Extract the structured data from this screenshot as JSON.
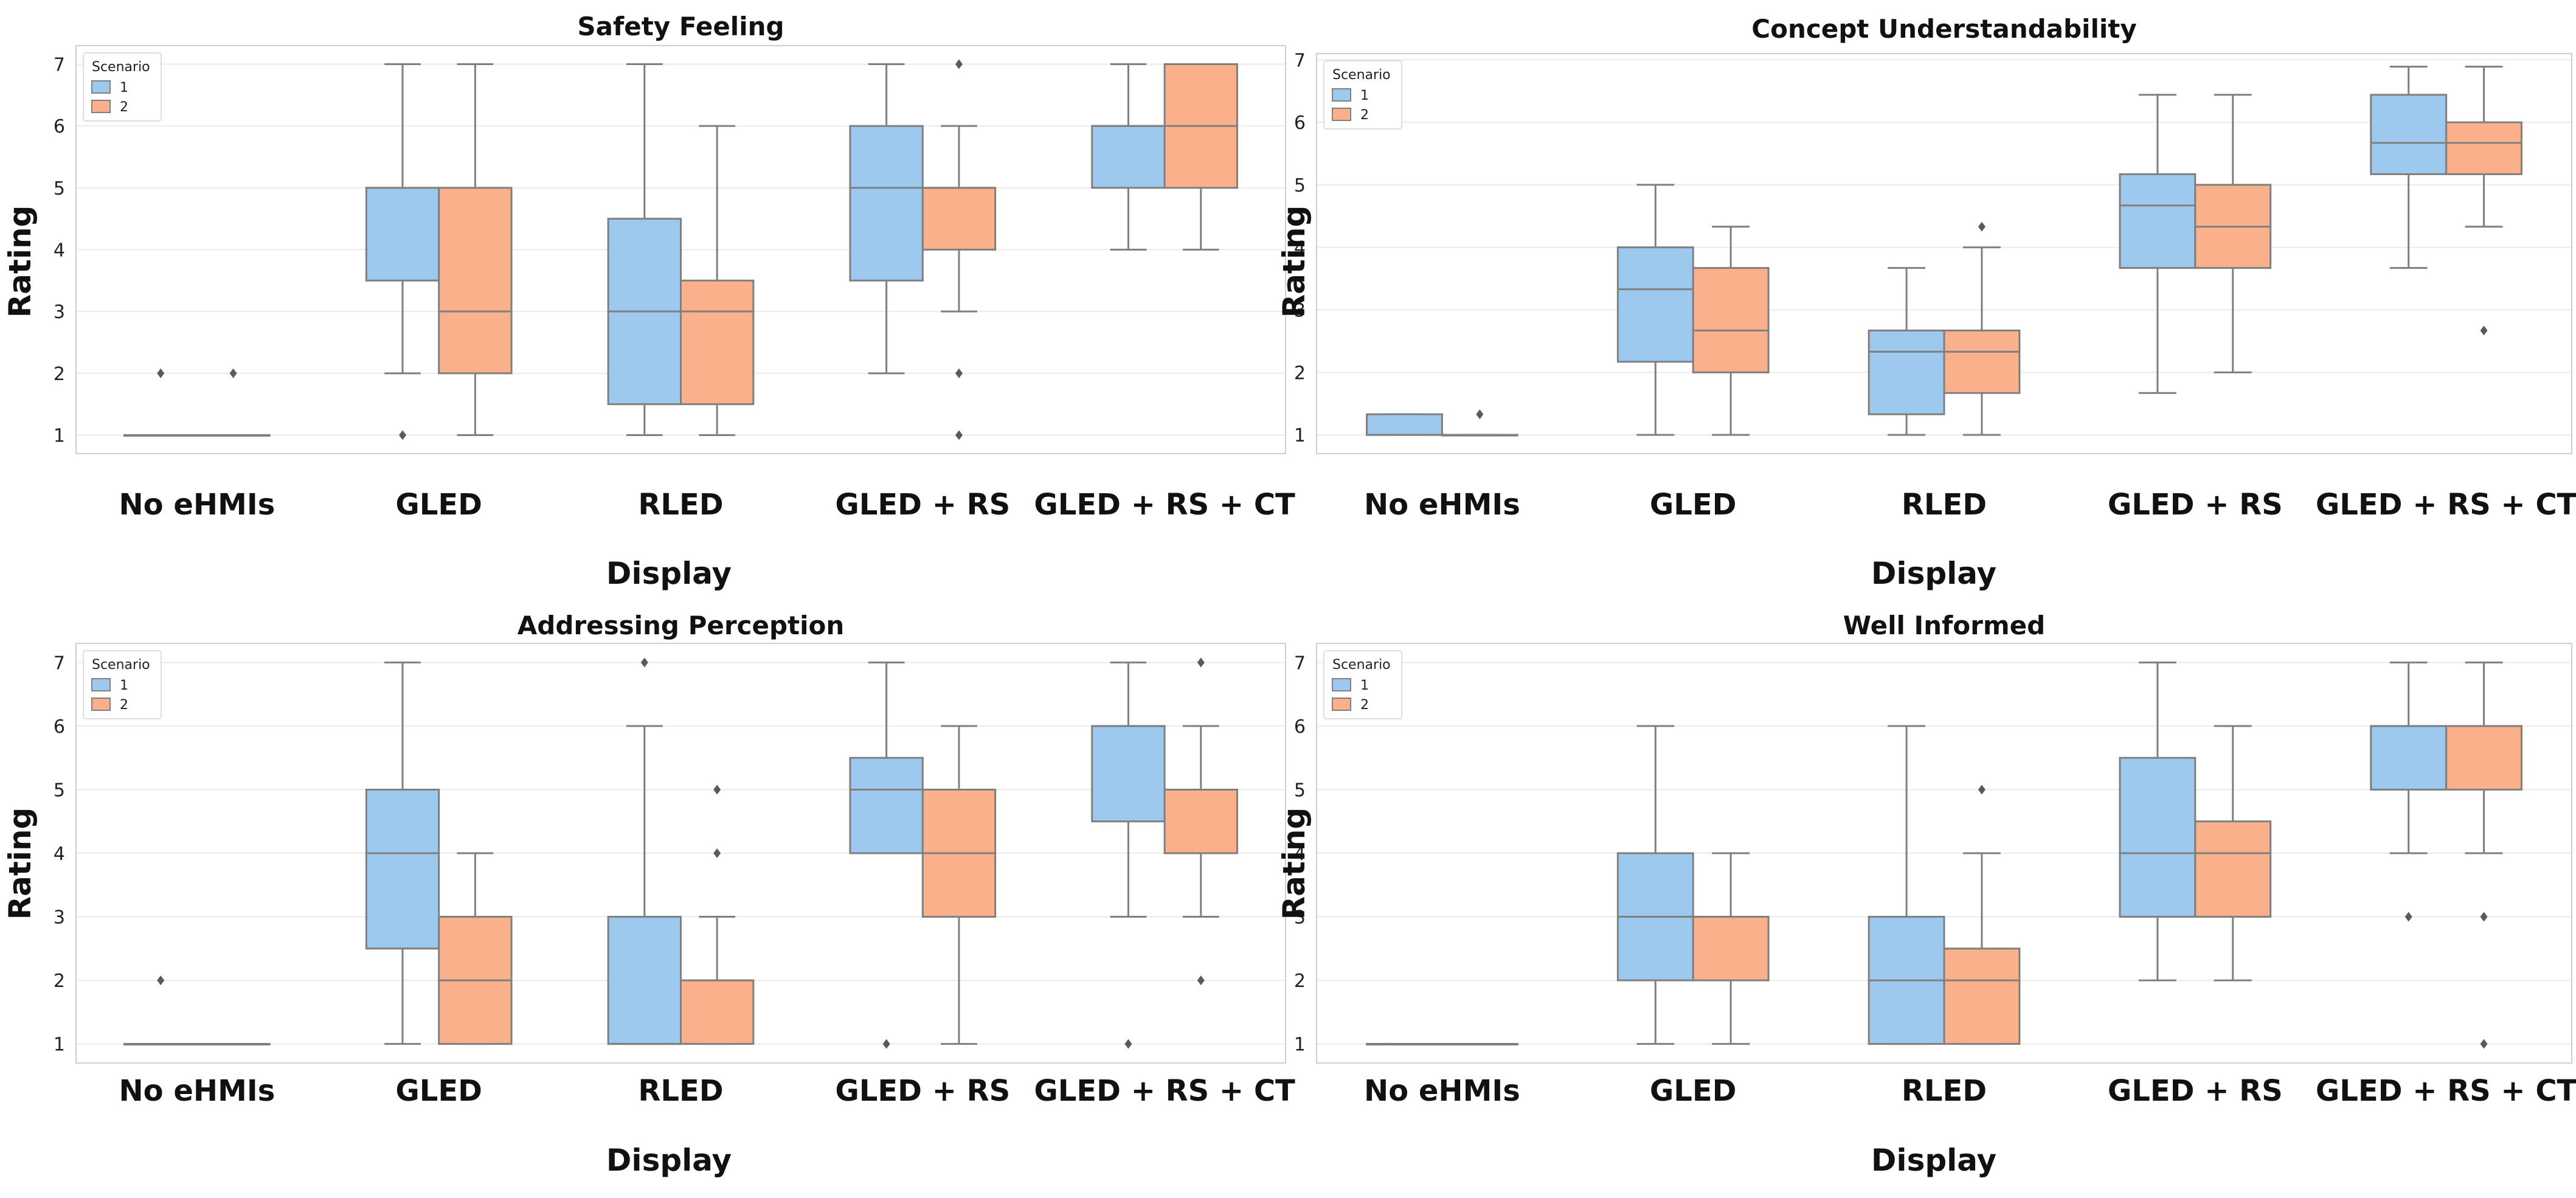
{
  "colors": {
    "scenario1": "#9ec9ee",
    "scenario2": "#fbb08c",
    "whisker": "#7f7f7f",
    "grid": "#ebebeb",
    "frame": "#cfcfcf"
  },
  "chart_data": [
    {
      "type": "box",
      "title": "Safety Feeling",
      "xlabel": "Display",
      "ylabel": "Rating",
      "ylim": [
        0.7,
        7.3
      ],
      "yticks": [
        1,
        2,
        3,
        4,
        5,
        6,
        7
      ],
      "legend": {
        "title": "Scenario",
        "entries": [
          "1",
          "2"
        ],
        "position": "top-left"
      },
      "categories": [
        "No eHMIs",
        "GLED",
        "RLED",
        "GLED + RS",
        "GLED + RS + CT"
      ],
      "series": [
        {
          "name": "1",
          "boxes": [
            {
              "q1": 1,
              "median": 1,
              "q3": 1,
              "whislo": 1,
              "whishi": 1,
              "fliers": [
                2
              ]
            },
            {
              "q1": 3.5,
              "median": 5,
              "q3": 5,
              "whislo": 2,
              "whishi": 7,
              "fliers": [
                1
              ]
            },
            {
              "q1": 1.5,
              "median": 3,
              "q3": 4.5,
              "whislo": 1,
              "whishi": 7,
              "fliers": []
            },
            {
              "q1": 3.5,
              "median": 5,
              "q3": 6,
              "whislo": 2,
              "whishi": 7,
              "fliers": []
            },
            {
              "q1": 5,
              "median": 6,
              "q3": 6,
              "whislo": 4,
              "whishi": 7,
              "fliers": []
            }
          ]
        },
        {
          "name": "2",
          "boxes": [
            {
              "q1": 1,
              "median": 1,
              "q3": 1,
              "whislo": 1,
              "whishi": 1,
              "fliers": [
                2
              ]
            },
            {
              "q1": 2,
              "median": 3,
              "q3": 5,
              "whislo": 1,
              "whishi": 7,
              "fliers": []
            },
            {
              "q1": 1.5,
              "median": 3,
              "q3": 3.5,
              "whislo": 1,
              "whishi": 6,
              "fliers": []
            },
            {
              "q1": 4,
              "median": 5,
              "q3": 5,
              "whislo": 3,
              "whishi": 6,
              "fliers": [
                7,
                2,
                1
              ]
            },
            {
              "q1": 5,
              "median": 6,
              "q3": 7,
              "whislo": 4,
              "whishi": 7,
              "fliers": []
            }
          ]
        }
      ]
    },
    {
      "type": "box",
      "title": "Concept Understandability",
      "xlabel": "Display",
      "ylabel": "Rating",
      "ylim": [
        0.7,
        7.1
      ],
      "yticks": [
        1,
        2,
        3,
        4,
        5,
        6,
        7
      ],
      "legend": {
        "title": "Scenario",
        "entries": [
          "1",
          "2"
        ],
        "position": "top-left"
      },
      "categories": [
        "No eHMIs",
        "GLED",
        "RLED",
        "GLED + RS",
        "GLED + RS + CT"
      ],
      "series": [
        {
          "name": "1",
          "boxes": [
            {
              "q1": 1,
              "median": 1,
              "q3": 1.33,
              "whislo": 1,
              "whishi": 1.33,
              "fliers": []
            },
            {
              "q1": 2.17,
              "median": 3.33,
              "q3": 4,
              "whislo": 1,
              "whishi": 5,
              "fliers": []
            },
            {
              "q1": 1.33,
              "median": 2.33,
              "q3": 2.67,
              "whislo": 1,
              "whishi": 3.67,
              "fliers": []
            },
            {
              "q1": 3.67,
              "median": 4.67,
              "q3": 5.17,
              "whislo": 1.67,
              "whishi": 6.44,
              "fliers": []
            },
            {
              "q1": 5.17,
              "median": 5.67,
              "q3": 6.44,
              "whislo": 3.67,
              "whishi": 6.89,
              "fliers": []
            }
          ]
        },
        {
          "name": "2",
          "boxes": [
            {
              "q1": 1,
              "median": 1,
              "q3": 1,
              "whislo": 1,
              "whishi": 1,
              "fliers": [
                1.33
              ]
            },
            {
              "q1": 2,
              "median": 2.67,
              "q3": 3.67,
              "whislo": 1,
              "whishi": 4.33,
              "fliers": []
            },
            {
              "q1": 1.67,
              "median": 2.33,
              "q3": 2.67,
              "whislo": 1,
              "whishi": 4,
              "fliers": [
                4.33
              ]
            },
            {
              "q1": 3.67,
              "median": 4.33,
              "q3": 5,
              "whislo": 2,
              "whishi": 6.44,
              "fliers": []
            },
            {
              "q1": 5.17,
              "median": 5.67,
              "q3": 6,
              "whislo": 4.33,
              "whishi": 6.89,
              "fliers": [
                2.67
              ]
            }
          ]
        }
      ]
    },
    {
      "type": "box",
      "title": "Addressing Perception",
      "xlabel": "Display",
      "ylabel": "Rating",
      "ylim": [
        0.7,
        7.3
      ],
      "yticks": [
        1,
        2,
        3,
        4,
        5,
        6,
        7
      ],
      "legend": {
        "title": "Scenario",
        "entries": [
          "1",
          "2"
        ],
        "position": "top-left"
      },
      "categories": [
        "No eHMIs",
        "GLED",
        "RLED",
        "GLED + RS",
        "GLED + RS + CT"
      ],
      "series": [
        {
          "name": "1",
          "boxes": [
            {
              "q1": 1,
              "median": 1,
              "q3": 1,
              "whislo": 1,
              "whishi": 1,
              "fliers": [
                2
              ]
            },
            {
              "q1": 2.5,
              "median": 4,
              "q3": 5,
              "whislo": 1,
              "whishi": 7,
              "fliers": []
            },
            {
              "q1": 1,
              "median": 1,
              "q3": 3,
              "whislo": 1,
              "whishi": 6,
              "fliers": [
                7
              ]
            },
            {
              "q1": 4,
              "median": 5,
              "q3": 5.5,
              "whislo": 4,
              "whishi": 7,
              "fliers": [
                1
              ]
            },
            {
              "q1": 4.5,
              "median": 6,
              "q3": 6,
              "whislo": 3,
              "whishi": 7,
              "fliers": [
                1
              ]
            }
          ]
        },
        {
          "name": "2",
          "boxes": [
            {
              "q1": 1,
              "median": 1,
              "q3": 1,
              "whislo": 1,
              "whishi": 1,
              "fliers": []
            },
            {
              "q1": 1,
              "median": 2,
              "q3": 3,
              "whislo": 1,
              "whishi": 4,
              "fliers": []
            },
            {
              "q1": 1,
              "median": 2,
              "q3": 2,
              "whislo": 1,
              "whishi": 3,
              "fliers": [
                5,
                4
              ]
            },
            {
              "q1": 3,
              "median": 4,
              "q3": 5,
              "whislo": 1,
              "whishi": 6,
              "fliers": []
            },
            {
              "q1": 4,
              "median": 5,
              "q3": 5,
              "whislo": 3,
              "whishi": 6,
              "fliers": [
                7,
                2
              ]
            }
          ]
        }
      ]
    },
    {
      "type": "box",
      "title": "Well Informed",
      "xlabel": "Display",
      "ylabel": "Rating",
      "ylim": [
        0.7,
        7.3
      ],
      "yticks": [
        1,
        2,
        3,
        4,
        5,
        6,
        7
      ],
      "legend": {
        "title": "Scenario",
        "entries": [
          "1",
          "2"
        ],
        "position": "top-left"
      },
      "categories": [
        "No eHMIs",
        "GLED",
        "RLED",
        "GLED + RS",
        "GLED + RS + CT"
      ],
      "series": [
        {
          "name": "1",
          "boxes": [
            {
              "q1": 1,
              "median": 1,
              "q3": 1,
              "whislo": 1,
              "whishi": 1,
              "fliers": []
            },
            {
              "q1": 2,
              "median": 3,
              "q3": 4,
              "whislo": 1,
              "whishi": 6,
              "fliers": []
            },
            {
              "q1": 1,
              "median": 2,
              "q3": 3,
              "whislo": 1,
              "whishi": 6,
              "fliers": []
            },
            {
              "q1": 3,
              "median": 4,
              "q3": 5.5,
              "whislo": 2,
              "whishi": 7,
              "fliers": []
            },
            {
              "q1": 5,
              "median": 6,
              "q3": 6,
              "whislo": 4,
              "whishi": 7,
              "fliers": [
                3
              ]
            }
          ]
        },
        {
          "name": "2",
          "boxes": [
            {
              "q1": 1,
              "median": 1,
              "q3": 1,
              "whislo": 1,
              "whishi": 1,
              "fliers": []
            },
            {
              "q1": 2,
              "median": 3,
              "q3": 3,
              "whislo": 1,
              "whishi": 4,
              "fliers": []
            },
            {
              "q1": 1,
              "median": 2,
              "q3": 2.5,
              "whislo": 1,
              "whishi": 4,
              "fliers": [
                5
              ]
            },
            {
              "q1": 3,
              "median": 4,
              "q3": 4.5,
              "whislo": 2,
              "whishi": 6,
              "fliers": []
            },
            {
              "q1": 5,
              "median": 6,
              "q3": 6,
              "whislo": 4,
              "whishi": 7,
              "fliers": [
                3,
                1
              ]
            }
          ]
        }
      ]
    }
  ]
}
